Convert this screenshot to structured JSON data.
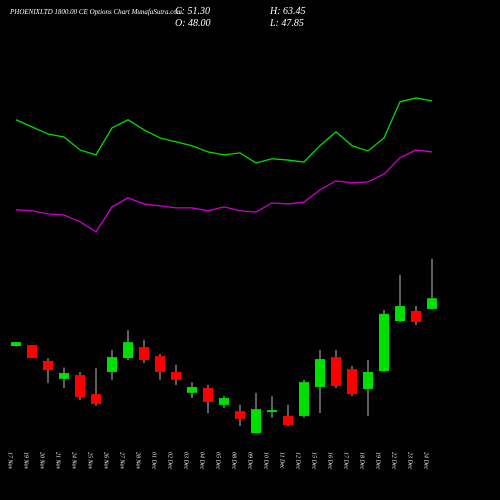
{
  "chart_data": {
    "type": "candlestick",
    "title": "PHOENIXLTD 1800.00  CE Options  Chart MunafaSutra.com",
    "stats": [
      "C: 51.30",
      "H: 63.45",
      "O: 48.00",
      "L: 47.85"
    ],
    "categories": [
      "17 Nov",
      "19 Nov",
      "20 Nov",
      "21 Nov",
      "24 Nov",
      "25 Nov",
      "26 Nov",
      "27 Nov",
      "28 Nov",
      "01 Dec",
      "02 Dec",
      "03 Dec",
      "04 Dec",
      "05 Dec",
      "08 Dec",
      "09 Dec",
      "10 Dec",
      "11 Dec",
      "12 Dec",
      "15 Dec",
      "16 Dec",
      "17 Dec",
      "18 Dec",
      "19 Dec",
      "22 Dec",
      "23 Dec",
      "24 Dec"
    ],
    "open": [
      36.6,
      36.9,
      32.0,
      26.5,
      27.7,
      21.8,
      28.6,
      32.9,
      36.3,
      33.5,
      28.6,
      22.2,
      23.7,
      18.5,
      16.6,
      9.8,
      16.3,
      15.1,
      15.1,
      24.0,
      33.2,
      29.5,
      23.4,
      28.9,
      44.3,
      47.4,
      48.0
    ],
    "high": [
      37.8,
      36.9,
      32.9,
      30.0,
      28.6,
      29.8,
      35.4,
      41.5,
      38.5,
      34.2,
      30.8,
      25.5,
      24.6,
      21.2,
      18.5,
      22.2,
      21.2,
      18.5,
      26.2,
      35.4,
      35.4,
      30.5,
      32.3,
      47.7,
      58.5,
      48.9,
      63.45
    ],
    "low": [
      36.6,
      32.9,
      25.2,
      23.7,
      20.0,
      18.2,
      26.2,
      32.3,
      31.4,
      26.2,
      24.6,
      20.6,
      15.9,
      17.5,
      12.0,
      9.8,
      14.5,
      12.0,
      14.5,
      16.0,
      23.7,
      21.2,
      15.1,
      28.6,
      44.0,
      43.1,
      47.85
    ],
    "close": [
      37.8,
      32.9,
      29.2,
      28.3,
      20.9,
      18.8,
      33.2,
      37.8,
      32.3,
      28.6,
      26.2,
      24.0,
      19.4,
      20.6,
      14.2,
      17.2,
      16.9,
      12.3,
      25.5,
      32.6,
      24.3,
      21.8,
      28.6,
      46.5,
      48.9,
      44.0,
      51.3
    ],
    "up_color": "#00e000",
    "down_color": "#ff0000",
    "series": [
      {
        "color": "#00dd00",
        "values": [
          106.2,
          104.0,
          101.8,
          100.9,
          96.9,
          95.4,
          103.7,
          106.2,
          103.1,
          100.6,
          99.4,
          98.2,
          96.3,
          95.4,
          96.0,
          92.9,
          94.2,
          93.8,
          93.2,
          98.2,
          102.5,
          98.2,
          96.6,
          100.6,
          111.7,
          112.9,
          112.0
        ]
      },
      {
        "color": "#cc00cc",
        "values": [
          78.5,
          78.2,
          77.2,
          76.9,
          74.8,
          71.7,
          79.4,
          82.2,
          80.3,
          79.7,
          79.1,
          79.1,
          78.2,
          79.4,
          78.2,
          77.8,
          80.6,
          80.3,
          80.9,
          84.6,
          87.4,
          86.8,
          87.1,
          89.5,
          94.5,
          96.9,
          96.3
        ]
      }
    ],
    "ylim": [
      7.7,
      133.8
    ]
  }
}
